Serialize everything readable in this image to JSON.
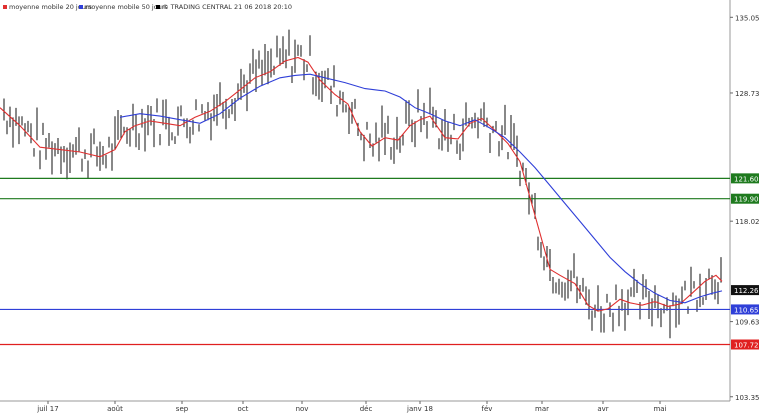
{
  "legend": {
    "items": [
      {
        "label": "moyenne mobile 20 jours",
        "color": "#e03030"
      },
      {
        "label": "moyenne mobile 50 jours",
        "color": "#2f3fd8"
      },
      {
        "label": "© TRADING CENTRAL 21 06 2018 20:10",
        "color": "#000000"
      }
    ]
  },
  "chart_data": {
    "type": "line",
    "title": "",
    "xlabel": "",
    "ylabel": "",
    "x_ticks": [
      "juil 17",
      "août",
      "sep",
      "oct",
      "nov",
      "déc",
      "janv 18",
      "fév",
      "mar",
      "avr",
      "mai"
    ],
    "y_ticks": [
      135.055,
      128.733,
      118.022,
      109.633,
      103.355
    ],
    "ylim": [
      103.0,
      136.5
    ],
    "grid": false,
    "legend_placement": "top-left",
    "levels": [
      {
        "value": 121.6,
        "label": "121.600",
        "color": "#1e7a1e"
      },
      {
        "value": 119.9,
        "label": "119.900",
        "color": "#1e7a1e"
      },
      {
        "value": 110.65,
        "label": "110.650",
        "color": "#2f3fd8"
      },
      {
        "value": 107.72,
        "label": "107.720",
        "color": "#e02020"
      }
    ],
    "last_price": {
      "value": 112.265,
      "label": "112.265"
    },
    "series": [
      {
        "name": "moyenne mobile 20 jours",
        "color": "#e03030",
        "values": [
          [
            0,
            127.5
          ],
          [
            20,
            126.0
          ],
          [
            40,
            124.2
          ],
          [
            60,
            124.0
          ],
          [
            80,
            123.8
          ],
          [
            100,
            123.4
          ],
          [
            115,
            124.0
          ],
          [
            125,
            125.5
          ],
          [
            135,
            126.0
          ],
          [
            150,
            126.4
          ],
          [
            165,
            126.2
          ],
          [
            180,
            126.0
          ],
          [
            195,
            126.7
          ],
          [
            210,
            127.2
          ],
          [
            225,
            128.0
          ],
          [
            240,
            129.0
          ],
          [
            255,
            130.0
          ],
          [
            270,
            130.5
          ],
          [
            285,
            131.4
          ],
          [
            298,
            131.7
          ],
          [
            308,
            131.3
          ],
          [
            320,
            129.8
          ],
          [
            335,
            128.6
          ],
          [
            348,
            127.8
          ],
          [
            360,
            125.5
          ],
          [
            372,
            124.3
          ],
          [
            385,
            125.0
          ],
          [
            398,
            124.8
          ],
          [
            410,
            126.0
          ],
          [
            420,
            126.5
          ],
          [
            430,
            126.8
          ],
          [
            445,
            125.0
          ],
          [
            458,
            124.9
          ],
          [
            470,
            126.2
          ],
          [
            482,
            126.6
          ],
          [
            495,
            125.6
          ],
          [
            508,
            124.5
          ],
          [
            520,
            123.0
          ],
          [
            530,
            120.0
          ],
          [
            540,
            117.0
          ],
          [
            550,
            114.0
          ],
          [
            560,
            113.5
          ],
          [
            575,
            112.8
          ],
          [
            588,
            111.0
          ],
          [
            598,
            110.5
          ],
          [
            608,
            110.7
          ],
          [
            620,
            111.5
          ],
          [
            630,
            111.2
          ],
          [
            642,
            111.0
          ],
          [
            655,
            111.3
          ],
          [
            668,
            110.9
          ],
          [
            680,
            111.1
          ],
          [
            692,
            112.0
          ],
          [
            705,
            113.0
          ],
          [
            716,
            113.5
          ],
          [
            722,
            113.0
          ]
        ]
      },
      {
        "name": "moyenne mobile 50 jours",
        "color": "#2f3fd8",
        "values": [
          [
            120,
            126.7
          ],
          [
            140,
            127.0
          ],
          [
            160,
            126.8
          ],
          [
            180,
            126.5
          ],
          [
            200,
            126.2
          ],
          [
            220,
            127.0
          ],
          [
            240,
            128.3
          ],
          [
            260,
            129.3
          ],
          [
            280,
            130.0
          ],
          [
            295,
            130.2
          ],
          [
            310,
            130.3
          ],
          [
            325,
            130.0
          ],
          [
            345,
            129.6
          ],
          [
            365,
            129.1
          ],
          [
            385,
            128.9
          ],
          [
            400,
            128.4
          ],
          [
            415,
            127.5
          ],
          [
            430,
            127.0
          ],
          [
            445,
            126.4
          ],
          [
            460,
            126.0
          ],
          [
            475,
            126.5
          ],
          [
            490,
            125.8
          ],
          [
            505,
            125.0
          ],
          [
            520,
            123.8
          ],
          [
            535,
            122.5
          ],
          [
            550,
            121.0
          ],
          [
            565,
            119.5
          ],
          [
            580,
            118.0
          ],
          [
            595,
            116.5
          ],
          [
            610,
            115.0
          ],
          [
            625,
            113.8
          ],
          [
            640,
            112.8
          ],
          [
            655,
            112.0
          ],
          [
            670,
            111.4
          ],
          [
            685,
            111.2
          ],
          [
            700,
            111.7
          ],
          [
            712,
            112.0
          ],
          [
            722,
            112.2
          ]
        ]
      }
    ]
  }
}
